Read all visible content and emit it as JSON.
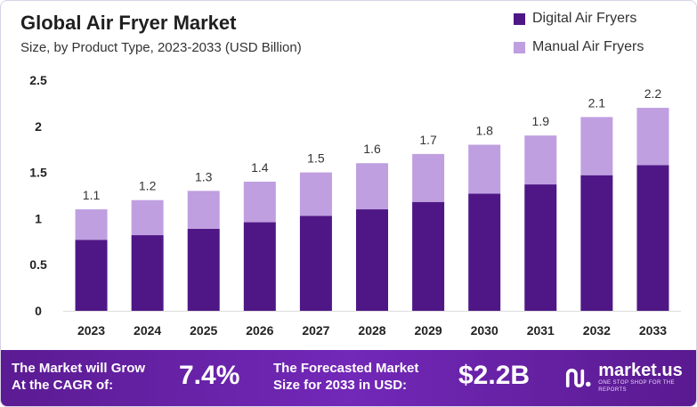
{
  "header": {
    "title": "Global Air Fryer Market",
    "subtitle": "Size, by Product Type, 2023-2033 (USD Billion)"
  },
  "chart_data": {
    "type": "bar",
    "stacked": true,
    "title": "Global Air Fryer Market",
    "subtitle": "Size, by Product Type, 2023-2033 (USD Billion)",
    "xlabel": "",
    "ylabel": "",
    "categories": [
      "2023",
      "2024",
      "2025",
      "2026",
      "2027",
      "2028",
      "2029",
      "2030",
      "2031",
      "2032",
      "2033"
    ],
    "series": [
      {
        "name": "Digital Air Fryers",
        "color": "#4f1786",
        "values": [
          0.77,
          0.82,
          0.89,
          0.96,
          1.03,
          1.1,
          1.18,
          1.27,
          1.37,
          1.47,
          1.58
        ]
      },
      {
        "name": "Manual Air Fryers",
        "color": "#bf9fe0",
        "values": [
          0.33,
          0.38,
          0.41,
          0.44,
          0.47,
          0.5,
          0.52,
          0.53,
          0.53,
          0.63,
          0.62
        ]
      }
    ],
    "totals": [
      1.1,
      1.2,
      1.3,
      1.4,
      1.5,
      1.6,
      1.7,
      1.8,
      1.9,
      2.1,
      2.2
    ],
    "total_labels": [
      "1.1",
      "1.2",
      "1.3",
      "1.4",
      "1.5",
      "1.6",
      "1.7",
      "1.8",
      "1.9",
      "2.1",
      "2.2"
    ],
    "ylim": [
      0,
      2.5
    ],
    "yticks": [
      0,
      0.5,
      1,
      1.5,
      2,
      2.5
    ],
    "ytick_labels": [
      "0",
      "0.5",
      "1",
      "1.5",
      "2",
      "2.5"
    ],
    "legend_position": "top-right",
    "grid": false
  },
  "footer": {
    "cagr_label_line1": "The Market will Grow",
    "cagr_label_line2": "At the CAGR of:",
    "cagr_value": "7.4%",
    "forecast_label_line1": "The Forecasted Market",
    "forecast_label_line2": "Size for 2033 in USD:",
    "forecast_value": "$2.2B",
    "brand_name": "market.us",
    "brand_tagline": "ONE STOP SHOP FOR THE REPORTS",
    "brand_icon": "market-us-logo-icon"
  }
}
